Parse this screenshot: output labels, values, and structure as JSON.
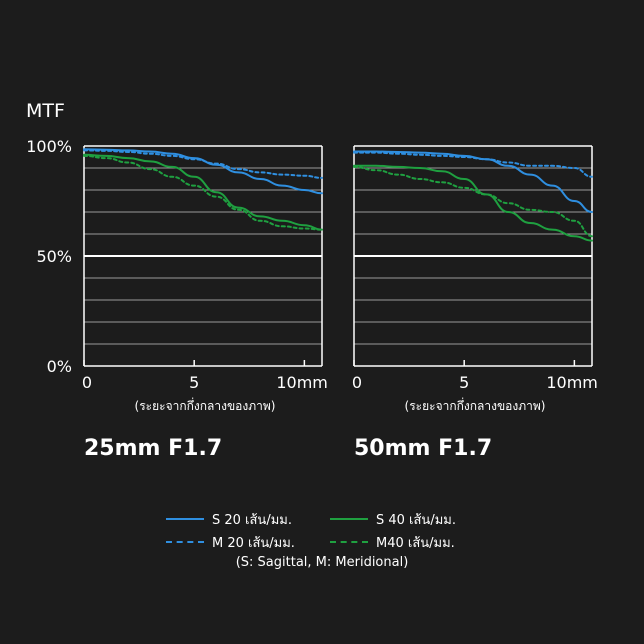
{
  "chart_data": [
    {
      "type": "line",
      "title": "25mm F1.7",
      "ylabel": "MTF",
      "xlabel": "(ระยะจากกึ่งกลางของภาพ)",
      "xlim": [
        0,
        10.8
      ],
      "ylim": [
        0,
        100
      ],
      "y_ticks": [
        "100%",
        "50%",
        "0%"
      ],
      "x_ticks": [
        "0",
        "5",
        "10mm"
      ],
      "grid": true,
      "series": [
        {
          "name": "S 20 เส้น/มม.",
          "style": "solid",
          "color": "#2f8fe0",
          "x": [
            0,
            1,
            2,
            3,
            4,
            5,
            6,
            7,
            8,
            9,
            10,
            10.8
          ],
          "y": [
            98.5,
            98.3,
            98,
            97.5,
            96.5,
            94.5,
            91.5,
            88,
            85,
            82,
            80,
            78.5
          ]
        },
        {
          "name": "M 20 เส้น/มม.",
          "style": "dashed",
          "color": "#2f8fe0",
          "x": [
            0,
            1,
            2,
            3,
            4,
            5,
            6,
            7,
            8,
            9,
            10,
            10.8
          ],
          "y": [
            98,
            97.8,
            97.3,
            96.5,
            95.5,
            94,
            92,
            89.5,
            88,
            87,
            86.5,
            85.5
          ]
        },
        {
          "name": "S 40 เส้น/มม.",
          "style": "solid",
          "color": "#1fa040",
          "x": [
            0,
            1,
            2,
            3,
            4,
            5,
            6,
            7,
            8,
            9,
            10,
            10.8
          ],
          "y": [
            96,
            95.5,
            94.5,
            93,
            90.5,
            86,
            79,
            72,
            68,
            66,
            64,
            62
          ]
        },
        {
          "name": "M40 เส้น/มม.",
          "style": "dashed",
          "color": "#1fa040",
          "x": [
            0,
            1,
            2,
            3,
            4,
            5,
            6,
            7,
            8,
            9,
            10,
            10.8
          ],
          "y": [
            95.5,
            94.5,
            92.5,
            89.5,
            86,
            82,
            77,
            71,
            66,
            63.5,
            62.5,
            62
          ]
        }
      ]
    },
    {
      "type": "line",
      "title": "50mm F1.7",
      "xlabel": "(ระยะจากกึ่งกลางของภาพ)",
      "xlim": [
        0,
        10.8
      ],
      "ylim": [
        0,
        100
      ],
      "x_ticks": [
        "0",
        "5",
        "10mm"
      ],
      "grid": true,
      "series": [
        {
          "name": "S 20 เส้น/มม.",
          "style": "solid",
          "color": "#2f8fe0",
          "x": [
            0,
            1,
            2,
            3,
            4,
            5,
            6,
            7,
            8,
            9,
            10,
            10.8
          ],
          "y": [
            97.5,
            97.5,
            97.3,
            97,
            96.5,
            95.5,
            94,
            91,
            87,
            82,
            75,
            70
          ]
        },
        {
          "name": "M 20 เส้น/มม.",
          "style": "dashed",
          "color": "#2f8fe0",
          "x": [
            0,
            1,
            2,
            3,
            4,
            5,
            6,
            7,
            8,
            9,
            10,
            10.8
          ],
          "y": [
            97,
            97,
            96.5,
            96,
            95.5,
            95,
            94,
            92.5,
            91,
            91,
            90,
            86
          ]
        },
        {
          "name": "S 40 เส้น/มม.",
          "style": "solid",
          "color": "#1fa040",
          "x": [
            0,
            1,
            2,
            3,
            4,
            5,
            6,
            7,
            8,
            9,
            10,
            10.8
          ],
          "y": [
            91,
            91,
            90.5,
            90,
            88.5,
            85,
            78,
            70,
            65,
            62,
            59,
            57
          ]
        },
        {
          "name": "M40 เส้น/มม.",
          "style": "dashed",
          "color": "#1fa040",
          "x": [
            0,
            1,
            2,
            3,
            4,
            5,
            6,
            7,
            8,
            9,
            10,
            10.8
          ],
          "y": [
            90.5,
            89,
            87,
            85,
            83.5,
            81,
            78,
            74,
            71,
            70,
            66,
            59
          ]
        }
      ]
    }
  ],
  "legend": {
    "s20": "S 20 เส้น/มม.",
    "m20": "M 20 เส้น/มม.",
    "s40": "S 40 เส้น/มม.",
    "m40": "M40 เส้น/มม.",
    "note": "(S: Sagittal, M: Meridional)"
  },
  "colors": {
    "blue": "#2f8fe0",
    "green": "#1fa040",
    "background": "#1c1c1c",
    "grid": "#9a9a9a"
  }
}
